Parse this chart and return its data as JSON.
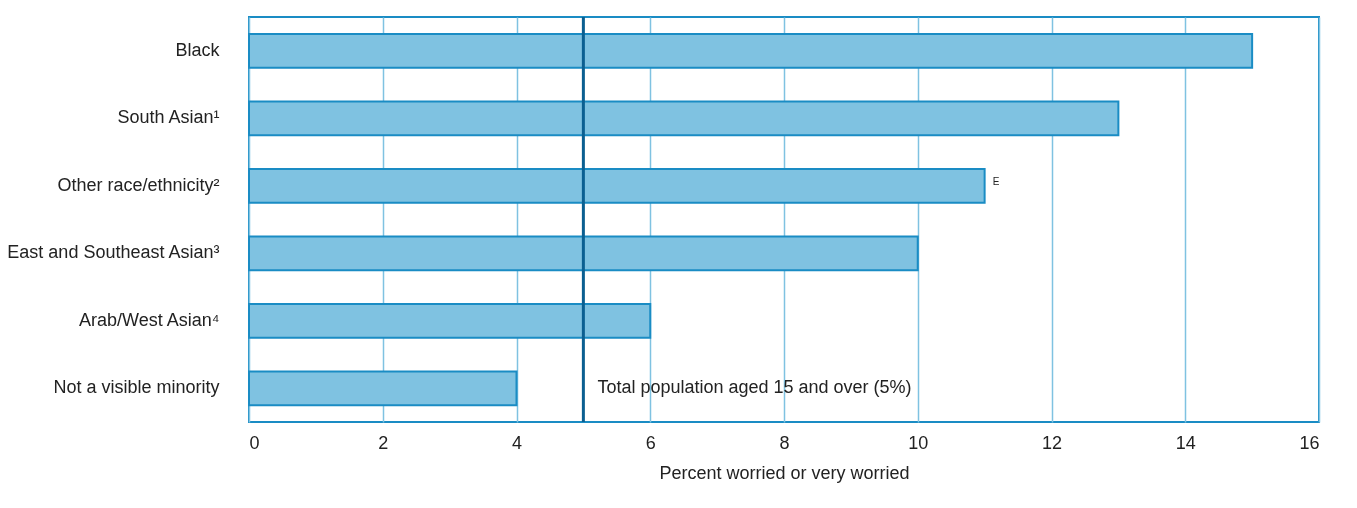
{
  "chart_data": {
    "type": "bar",
    "orientation": "horizontal",
    "xlabel": "Percent worried or very worried",
    "categories": [
      "Black",
      "South Asian¹",
      "Other race/ethnicity²",
      "East and Southeast Asian³",
      "Arab/West Asian⁴",
      "Not a visible minority"
    ],
    "values": [
      15,
      13,
      11,
      10,
      6,
      4
    ],
    "color": "#7fc2e1",
    "xlim": [
      0,
      16
    ],
    "xticks": [
      0,
      2,
      4,
      6,
      8,
      10,
      12,
      14,
      16
    ],
    "grid": "x",
    "ref_lines": [
      {
        "axis": "x",
        "value": 5,
        "label": "Total population aged 15 and over (5%)",
        "color": "#0b5f91"
      }
    ],
    "annotations": [
      {
        "text": "E",
        "x": 11,
        "y": "Other race/ethnicity²"
      }
    ]
  }
}
